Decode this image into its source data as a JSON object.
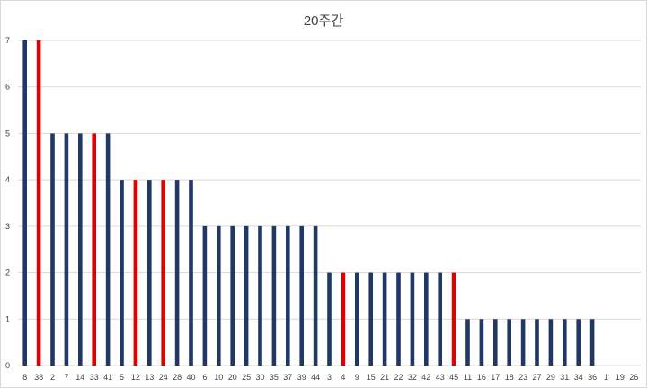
{
  "chart_data": {
    "type": "bar",
    "title": "20주간",
    "xlabel": "",
    "ylabel": "",
    "ylim": [
      0,
      7
    ],
    "yticks": [
      0,
      1,
      2,
      3,
      4,
      5,
      6,
      7
    ],
    "grid": true,
    "legend": "none",
    "colors": {
      "default": "#1f3864",
      "highlight": "#e00000",
      "grid": "#d9d9d9"
    },
    "categories": [
      "8",
      "38",
      "2",
      "7",
      "14",
      "33",
      "41",
      "5",
      "12",
      "13",
      "24",
      "28",
      "40",
      "6",
      "10",
      "20",
      "25",
      "30",
      "35",
      "37",
      "39",
      "44",
      "3",
      "4",
      "9",
      "15",
      "21",
      "22",
      "32",
      "42",
      "43",
      "45",
      "11",
      "16",
      "17",
      "18",
      "23",
      "27",
      "29",
      "31",
      "34",
      "36",
      "1",
      "19",
      "26"
    ],
    "values": [
      7,
      7,
      5,
      5,
      5,
      5,
      5,
      4,
      4,
      4,
      4,
      4,
      4,
      3,
      3,
      3,
      3,
      3,
      3,
      3,
      3,
      3,
      2,
      2,
      2,
      2,
      2,
      2,
      2,
      2,
      2,
      2,
      1,
      1,
      1,
      1,
      1,
      1,
      1,
      1,
      1,
      1,
      0,
      0,
      0
    ],
    "highlighted": [
      "38",
      "33",
      "12",
      "24",
      "4",
      "45"
    ]
  }
}
